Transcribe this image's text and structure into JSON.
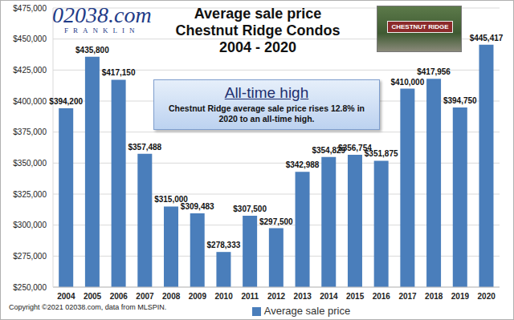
{
  "chart_data": {
    "type": "bar",
    "logo": "02038.com",
    "logo_subtitle": "FRANKLIN",
    "title": "Average sale price",
    "subtitle": "Chestnut Ridge Condos",
    "period": "2004 - 2020",
    "image_text": "CHESTNUT RIDGE",
    "annotation": {
      "title": "All-time high",
      "text": "Chestnut Ridge average sale price rises 12.8% in 2020 to an all-time high."
    },
    "footnote": "Copyright ©2021 02038.com, data from MLSPIN.",
    "categories": [
      "2004",
      "2005",
      "2006",
      "2007",
      "2008",
      "2009",
      "2010",
      "2011",
      "2012",
      "2013",
      "2014",
      "2015",
      "2016",
      "2017",
      "2018",
      "2019",
      "2020"
    ],
    "series": [
      {
        "name": "Average sale price",
        "color": "#4a7ebb",
        "values": [
          394200,
          435800,
          417150,
          357488,
          315000,
          309483,
          278333,
          307500,
          297500,
          342988,
          354829,
          356754,
          351875,
          410000,
          417956,
          394750,
          445417
        ],
        "value_labels": [
          "$394,200",
          "$435,800",
          "$417,150",
          "$357,488",
          "$315,000",
          "$309,483",
          "$278,333",
          "$307,500",
          "$297,500",
          "$342,988",
          "$354,829",
          "$356,754",
          "$351,875",
          "$410,000",
          "$417,956",
          "$394,750",
          "$445,417"
        ]
      }
    ],
    "ylim": [
      250000,
      475000
    ],
    "yticks": [
      {
        "value": 250000,
        "label": "$250,000"
      },
      {
        "value": 275000,
        "label": "$275,000"
      },
      {
        "value": 300000,
        "label": "$300,000"
      },
      {
        "value": 325000,
        "label": "$325,000"
      },
      {
        "value": 350000,
        "label": "$350,000"
      },
      {
        "value": 375000,
        "label": "$375,000"
      },
      {
        "value": 400000,
        "label": "$400,000"
      },
      {
        "value": 425000,
        "label": "$425,000"
      },
      {
        "value": 450000,
        "label": "$450,000"
      },
      {
        "value": 475000,
        "label": "$475,000"
      }
    ],
    "grid": true,
    "data_labels": true,
    "legend": "bottom"
  }
}
